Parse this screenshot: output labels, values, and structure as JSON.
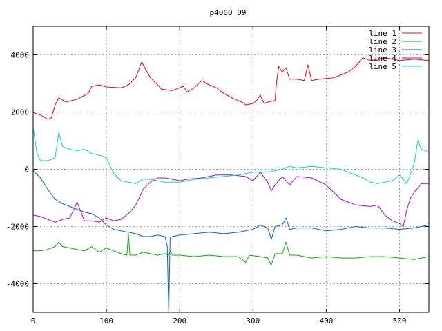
{
  "chart_data": {
    "type": "line",
    "title": "p4000_09",
    "xlabel": "",
    "ylabel": "",
    "xlim": [
      0,
      540
    ],
    "ylim": [
      -5000,
      5000
    ],
    "x_ticks": [
      0,
      100,
      200,
      300,
      400,
      500
    ],
    "y_ticks": [
      -4000,
      -2000,
      0,
      2000,
      4000
    ],
    "grid": true,
    "legend_position": "top-right",
    "series": [
      {
        "name": "line 1",
        "color": "#ff0000",
        "points": [
          [
            0,
            1980
          ],
          [
            10,
            1900
          ],
          [
            20,
            1750
          ],
          [
            25,
            1800
          ],
          [
            30,
            2250
          ],
          [
            35,
            2500
          ],
          [
            45,
            2350
          ],
          [
            60,
            2450
          ],
          [
            75,
            2650
          ],
          [
            80,
            2900
          ],
          [
            90,
            2950
          ],
          [
            100,
            2880
          ],
          [
            120,
            2850
          ],
          [
            130,
            2950
          ],
          [
            140,
            3200
          ],
          [
            148,
            3750
          ],
          [
            160,
            3200
          ],
          [
            170,
            2950
          ],
          [
            175,
            2800
          ],
          [
            190,
            2750
          ],
          [
            205,
            2900
          ],
          [
            210,
            2700
          ],
          [
            220,
            2850
          ],
          [
            230,
            3100
          ],
          [
            240,
            2950
          ],
          [
            250,
            2850
          ],
          [
            260,
            2650
          ],
          [
            275,
            2450
          ],
          [
            285,
            2350
          ],
          [
            290,
            2250
          ],
          [
            300,
            2300
          ],
          [
            305,
            2400
          ],
          [
            310,
            2600
          ],
          [
            315,
            2300
          ],
          [
            320,
            2350
          ],
          [
            330,
            2400
          ],
          [
            332,
            3000
          ],
          [
            335,
            3600
          ],
          [
            340,
            3400
          ],
          [
            345,
            3550
          ],
          [
            350,
            3150
          ],
          [
            360,
            3150
          ],
          [
            370,
            3100
          ],
          [
            375,
            3650
          ],
          [
            380,
            3100
          ],
          [
            390,
            3150
          ],
          [
            410,
            3200
          ],
          [
            420,
            3300
          ],
          [
            430,
            3400
          ],
          [
            440,
            3600
          ],
          [
            450,
            3900
          ],
          [
            460,
            3800
          ],
          [
            480,
            3900
          ],
          [
            500,
            3800
          ],
          [
            520,
            3850
          ],
          [
            540,
            3800
          ]
        ]
      },
      {
        "name": "line 2",
        "color": "#00b000",
        "points": [
          [
            0,
            -2850
          ],
          [
            10,
            -2850
          ],
          [
            20,
            -2800
          ],
          [
            30,
            -2700
          ],
          [
            35,
            -2550
          ],
          [
            40,
            -2700
          ],
          [
            50,
            -2750
          ],
          [
            60,
            -2800
          ],
          [
            70,
            -2850
          ],
          [
            80,
            -2700
          ],
          [
            90,
            -2900
          ],
          [
            100,
            -2750
          ],
          [
            110,
            -2850
          ],
          [
            120,
            -2950
          ],
          [
            128,
            -3000
          ],
          [
            130,
            -2250
          ],
          [
            132,
            -3000
          ],
          [
            140,
            -3000
          ],
          [
            150,
            -2900
          ],
          [
            160,
            -2950
          ],
          [
            170,
            -3000
          ],
          [
            180,
            -2950
          ],
          [
            185,
            -3000
          ],
          [
            187,
            -2850
          ],
          [
            190,
            -3000
          ],
          [
            200,
            -3000
          ],
          [
            220,
            -3050
          ],
          [
            240,
            -3000
          ],
          [
            260,
            -3050
          ],
          [
            280,
            -3050
          ],
          [
            290,
            -3250
          ],
          [
            295,
            -3000
          ],
          [
            310,
            -3050
          ],
          [
            320,
            -3100
          ],
          [
            325,
            -3350
          ],
          [
            330,
            -2950
          ],
          [
            340,
            -2950
          ],
          [
            345,
            -2550
          ],
          [
            350,
            -3000
          ],
          [
            360,
            -3000
          ],
          [
            380,
            -3100
          ],
          [
            400,
            -3050
          ],
          [
            420,
            -3100
          ],
          [
            440,
            -3100
          ],
          [
            460,
            -3050
          ],
          [
            480,
            -3050
          ],
          [
            500,
            -3100
          ],
          [
            520,
            -3150
          ],
          [
            540,
            -3050
          ]
        ]
      },
      {
        "name": "line 3",
        "color": "#0060e0",
        "points": [
          [
            0,
            -50
          ],
          [
            10,
            -300
          ],
          [
            20,
            -700
          ],
          [
            30,
            -1050
          ],
          [
            40,
            -1200
          ],
          [
            50,
            -1300
          ],
          [
            60,
            -1400
          ],
          [
            70,
            -1500
          ],
          [
            80,
            -1550
          ],
          [
            90,
            -1700
          ],
          [
            100,
            -1950
          ],
          [
            110,
            -2100
          ],
          [
            120,
            -2150
          ],
          [
            130,
            -2200
          ],
          [
            140,
            -2250
          ],
          [
            150,
            -2350
          ],
          [
            160,
            -2350
          ],
          [
            170,
            -2300
          ],
          [
            180,
            -2350
          ],
          [
            183,
            -2700
          ],
          [
            185,
            -5000
          ],
          [
            187,
            -2400
          ],
          [
            190,
            -2350
          ],
          [
            200,
            -2300
          ],
          [
            220,
            -2250
          ],
          [
            240,
            -2200
          ],
          [
            260,
            -2250
          ],
          [
            280,
            -2200
          ],
          [
            300,
            -2100
          ],
          [
            310,
            -1950
          ],
          [
            320,
            -2050
          ],
          [
            325,
            -2450
          ],
          [
            330,
            -2000
          ],
          [
            340,
            -1950
          ],
          [
            345,
            -1700
          ],
          [
            350,
            -2100
          ],
          [
            360,
            -2050
          ],
          [
            380,
            -2050
          ],
          [
            400,
            -2150
          ],
          [
            420,
            -2100
          ],
          [
            440,
            -2000
          ],
          [
            460,
            -2050
          ],
          [
            480,
            -2050
          ],
          [
            500,
            -2100
          ],
          [
            520,
            -2050
          ],
          [
            540,
            -1950
          ]
        ]
      },
      {
        "name": "line 4",
        "color": "#b000e0",
        "points": [
          [
            0,
            -1600
          ],
          [
            10,
            -1650
          ],
          [
            20,
            -1750
          ],
          [
            30,
            -1850
          ],
          [
            40,
            -1750
          ],
          [
            50,
            -1700
          ],
          [
            60,
            -1150
          ],
          [
            70,
            -1800
          ],
          [
            80,
            -1800
          ],
          [
            90,
            -1850
          ],
          [
            100,
            -1700
          ],
          [
            110,
            -1800
          ],
          [
            120,
            -1750
          ],
          [
            130,
            -1550
          ],
          [
            140,
            -1250
          ],
          [
            150,
            -700
          ],
          [
            160,
            -450
          ],
          [
            170,
            -300
          ],
          [
            180,
            -300
          ],
          [
            190,
            -350
          ],
          [
            200,
            -400
          ],
          [
            210,
            -350
          ],
          [
            230,
            -300
          ],
          [
            250,
            -200
          ],
          [
            270,
            -200
          ],
          [
            290,
            -250
          ],
          [
            300,
            -400
          ],
          [
            310,
            -100
          ],
          [
            320,
            -450
          ],
          [
            325,
            -750
          ],
          [
            330,
            -550
          ],
          [
            340,
            -250
          ],
          [
            350,
            -550
          ],
          [
            360,
            -250
          ],
          [
            380,
            -300
          ],
          [
            400,
            -550
          ],
          [
            420,
            -1050
          ],
          [
            440,
            -1250
          ],
          [
            460,
            -1300
          ],
          [
            470,
            -1250
          ],
          [
            480,
            -1600
          ],
          [
            490,
            -1800
          ],
          [
            500,
            -1900
          ],
          [
            505,
            -2000
          ],
          [
            510,
            -1400
          ],
          [
            515,
            -1000
          ],
          [
            520,
            -800
          ],
          [
            530,
            -500
          ],
          [
            540,
            -500
          ]
        ]
      },
      {
        "name": "line 5",
        "color": "#00d8d8",
        "points": [
          [
            0,
            1450
          ],
          [
            5,
            600
          ],
          [
            10,
            300
          ],
          [
            20,
            300
          ],
          [
            30,
            400
          ],
          [
            35,
            1300
          ],
          [
            40,
            800
          ],
          [
            50,
            700
          ],
          [
            60,
            650
          ],
          [
            70,
            700
          ],
          [
            80,
            550
          ],
          [
            90,
            500
          ],
          [
            100,
            400
          ],
          [
            110,
            -150
          ],
          [
            120,
            -400
          ],
          [
            130,
            -450
          ],
          [
            140,
            -500
          ],
          [
            150,
            -350
          ],
          [
            160,
            -350
          ],
          [
            170,
            -400
          ],
          [
            180,
            -450
          ],
          [
            200,
            -450
          ],
          [
            220,
            -350
          ],
          [
            240,
            -300
          ],
          [
            260,
            -250
          ],
          [
            280,
            -200
          ],
          [
            300,
            -100
          ],
          [
            320,
            -100
          ],
          [
            340,
            0
          ],
          [
            350,
            100
          ],
          [
            360,
            50
          ],
          [
            380,
            100
          ],
          [
            400,
            50
          ],
          [
            420,
            0
          ],
          [
            440,
            -200
          ],
          [
            450,
            -300
          ],
          [
            460,
            -450
          ],
          [
            470,
            -500
          ],
          [
            480,
            -450
          ],
          [
            490,
            -400
          ],
          [
            500,
            -200
          ],
          [
            510,
            -500
          ],
          [
            520,
            200
          ],
          [
            525,
            1000
          ],
          [
            530,
            700
          ],
          [
            540,
            600
          ]
        ]
      }
    ]
  }
}
